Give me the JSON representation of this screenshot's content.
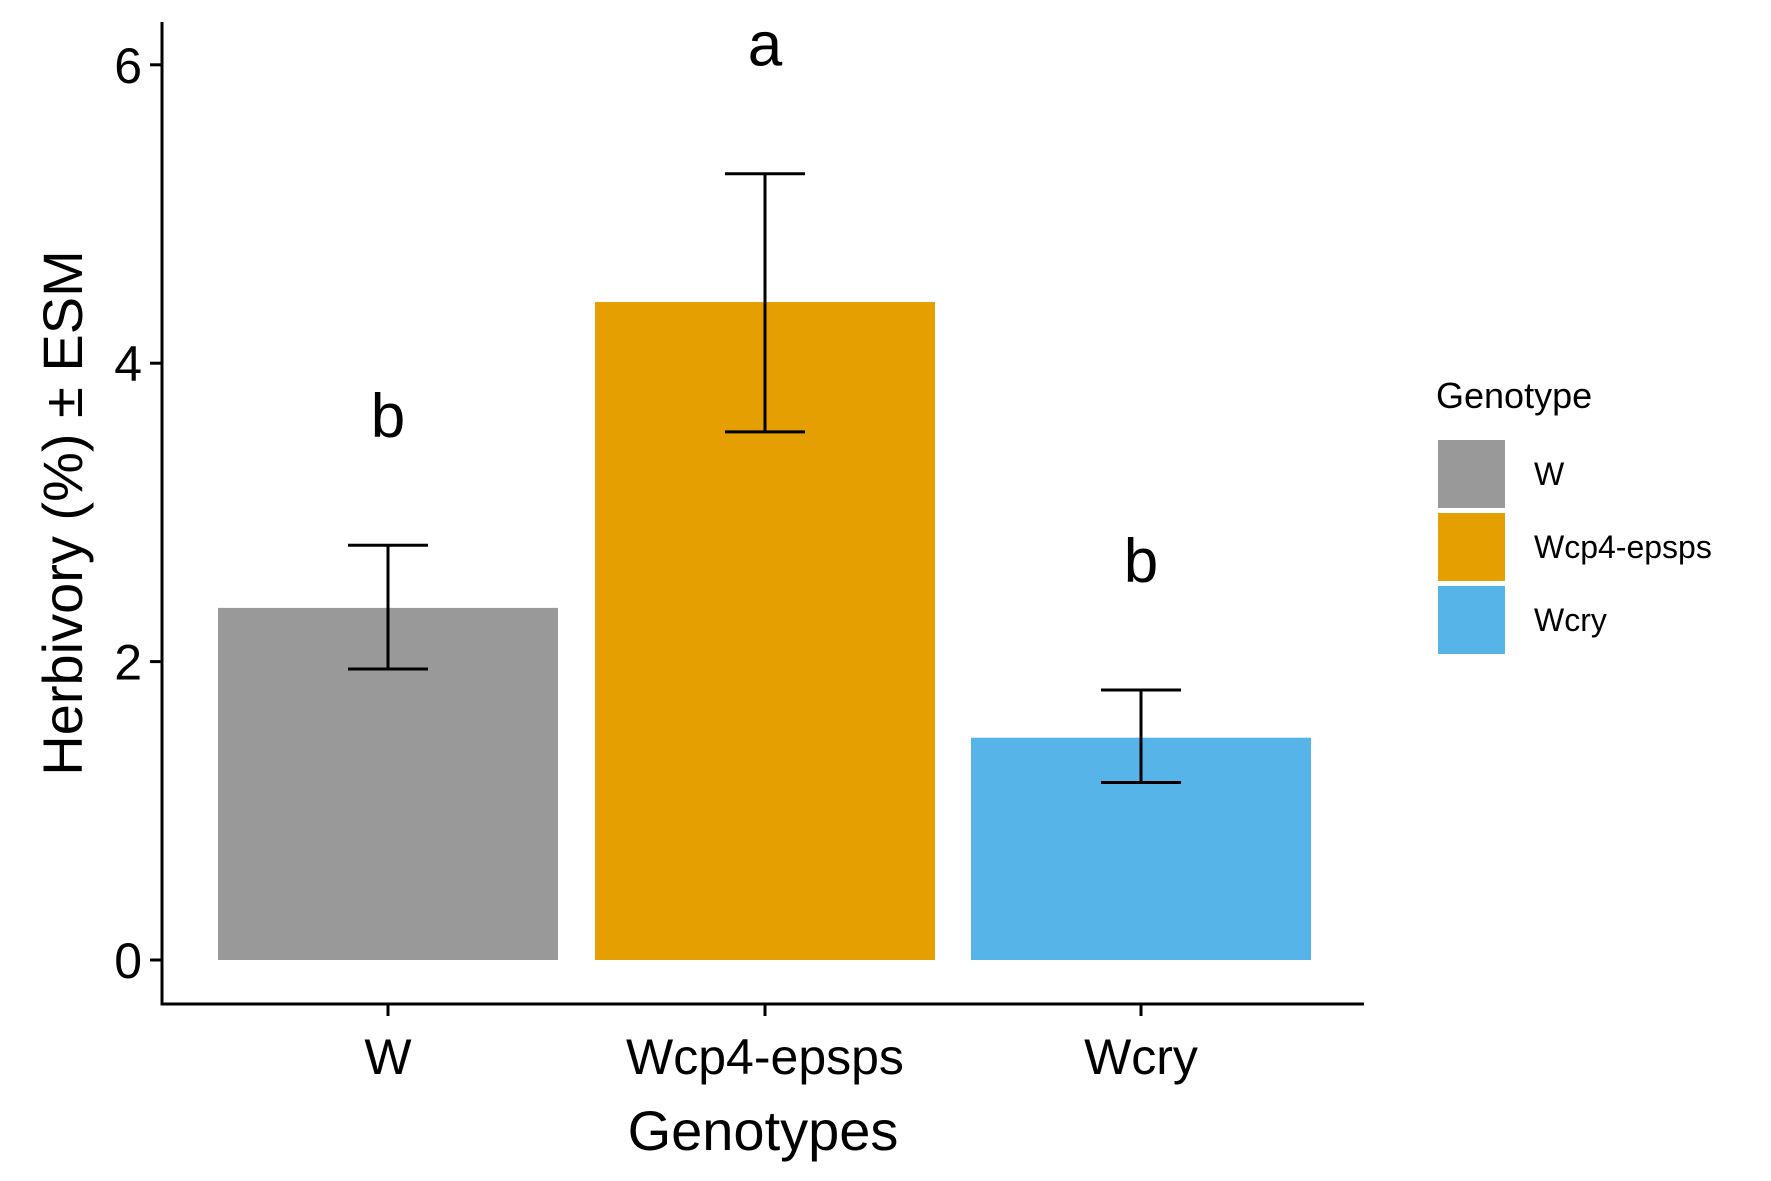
{
  "chart_data": {
    "type": "bar",
    "xlabel": "Genotypes",
    "ylabel": "Herbivory (%) ± ESM",
    "ylim": [
      -0.3,
      6.3
    ],
    "yticks": [
      0,
      2,
      4,
      6
    ],
    "ytick_labels": [
      "0",
      "2",
      "4",
      "6"
    ],
    "grid": false,
    "categories": [
      "W",
      "Wcp4-epsps",
      "Wcry"
    ],
    "values": [
      2.36,
      4.41,
      1.49
    ],
    "error_low": [
      1.95,
      3.54,
      1.19
    ],
    "error_high": [
      2.78,
      5.27,
      1.81
    ],
    "significance_letters": [
      "b",
      "a",
      "b"
    ],
    "colors": [
      "#999999",
      "#E69F00",
      "#56B4E9"
    ],
    "legend": {
      "title": "Genotype",
      "position": "right",
      "entries": [
        "W",
        "Wcp4-epsps",
        "Wcry"
      ]
    }
  }
}
